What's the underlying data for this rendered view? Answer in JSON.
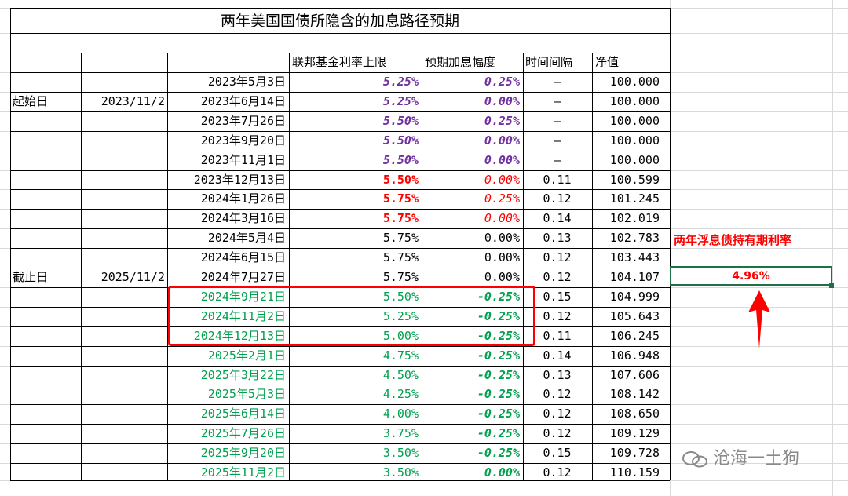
{
  "title": "两年美国国债所隐含的加息路径预期",
  "headers": {
    "rate_cap": "联邦基金利率上限",
    "expected_hike": "预期加息幅度",
    "interval": "时间间隔",
    "nav": "净值"
  },
  "side_labels": {
    "start_label": "起始日",
    "start_date": "2023/11/2",
    "end_label": "截止日",
    "end_date": "2025/11/2"
  },
  "rows": [
    {
      "date": "2023年5月3日",
      "rate": "5.25%",
      "hike": "0.25%",
      "interval": "–",
      "nav": "100.000",
      "style": "purple"
    },
    {
      "date": "2023年6月14日",
      "rate": "5.25%",
      "hike": "0.00%",
      "interval": "–",
      "nav": "100.000",
      "style": "purple"
    },
    {
      "date": "2023年7月26日",
      "rate": "5.50%",
      "hike": "0.25%",
      "interval": "–",
      "nav": "100.000",
      "style": "purple"
    },
    {
      "date": "2023年9月20日",
      "rate": "5.50%",
      "hike": "0.00%",
      "interval": "–",
      "nav": "100.000",
      "style": "purple"
    },
    {
      "date": "2023年11月1日",
      "rate": "5.50%",
      "hike": "0.00%",
      "interval": "–",
      "nav": "100.000",
      "style": "purple"
    },
    {
      "date": "2023年12月13日",
      "rate": "5.50%",
      "hike": "0.00%",
      "interval": "0.11",
      "nav": "100.599",
      "style": "red"
    },
    {
      "date": "2024年1月26日",
      "rate": "5.75%",
      "hike": "0.25%",
      "interval": "0.12",
      "nav": "101.245",
      "style": "red"
    },
    {
      "date": "2024年3月16日",
      "rate": "5.75%",
      "hike": "0.00%",
      "interval": "0.14",
      "nav": "102.019",
      "style": "red"
    },
    {
      "date": "2024年5月4日",
      "rate": "5.75%",
      "hike": "0.00%",
      "interval": "0.13",
      "nav": "102.783",
      "style": "black"
    },
    {
      "date": "2024年6月15日",
      "rate": "5.75%",
      "hike": "0.00%",
      "interval": "0.12",
      "nav": "103.443",
      "style": "black"
    },
    {
      "date": "2024年7月27日",
      "rate": "5.75%",
      "hike": "0.00%",
      "interval": "0.12",
      "nav": "104.107",
      "style": "black"
    },
    {
      "date": "2024年9月21日",
      "rate": "5.50%",
      "hike": "-0.25%",
      "interval": "0.15",
      "nav": "104.999",
      "style": "green"
    },
    {
      "date": "2024年11月2日",
      "rate": "5.25%",
      "hike": "-0.25%",
      "interval": "0.12",
      "nav": "105.643",
      "style": "green"
    },
    {
      "date": "2024年12月13日",
      "rate": "5.00%",
      "hike": "-0.25%",
      "interval": "0.11",
      "nav": "106.245",
      "style": "green"
    },
    {
      "date": "2025年2月1日",
      "rate": "4.75%",
      "hike": "-0.25%",
      "interval": "0.14",
      "nav": "106.948",
      "style": "green"
    },
    {
      "date": "2025年3月22日",
      "rate": "4.50%",
      "hike": "-0.25%",
      "interval": "0.13",
      "nav": "107.606",
      "style": "green"
    },
    {
      "date": "2025年5月3日",
      "rate": "4.25%",
      "hike": "-0.25%",
      "interval": "0.12",
      "nav": "108.142",
      "style": "green"
    },
    {
      "date": "2025年6月14日",
      "rate": "4.00%",
      "hike": "-0.25%",
      "interval": "0.12",
      "nav": "108.650",
      "style": "green"
    },
    {
      "date": "2025年7月26日",
      "rate": "3.75%",
      "hike": "-0.25%",
      "interval": "0.12",
      "nav": "109.129",
      "style": "green"
    },
    {
      "date": "2025年9月20日",
      "rate": "3.50%",
      "hike": "-0.25%",
      "interval": "0.15",
      "nav": "109.728",
      "style": "green"
    },
    {
      "date": "2025年11月2日",
      "rate": "3.50%",
      "hike": "0.00%",
      "interval": "0.12",
      "nav": "110.159",
      "style": "green"
    }
  ],
  "holding_rate_label": "两年浮息债持有期利率",
  "holding_rate_value": "4.96%",
  "watermark": "沧海一土狗",
  "colors": {
    "purple": "#7030a0",
    "red": "#ff0000",
    "green": "#00a04e",
    "grid": "#d9d9d9",
    "selection": "#1e7145"
  }
}
